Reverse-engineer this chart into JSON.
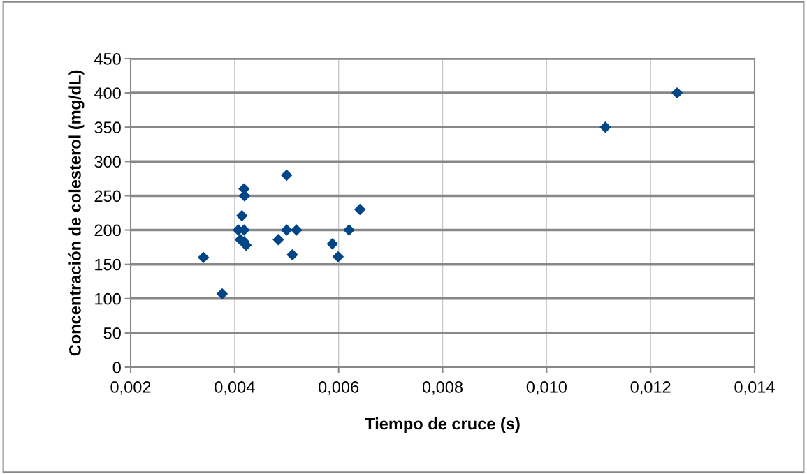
{
  "chart_data": {
    "type": "scatter",
    "xlabel": "Tiempo de cruce (s)",
    "ylabel": "Concentración de colesterol (mg/dL)",
    "x": [
      0.0034,
      0.00376,
      0.00418,
      0.00419,
      0.00414,
      0.00407,
      0.00418,
      0.00411,
      0.00418,
      0.00422,
      0.005,
      0.005,
      0.00519,
      0.00484,
      0.00511,
      0.00588,
      0.00599,
      0.0062,
      0.00641,
      0.01113,
      0.01251
    ],
    "values": [
      160,
      107,
      260,
      250,
      221,
      200,
      200,
      186,
      183,
      178,
      200,
      280,
      200,
      186,
      164,
      180,
      161,
      200,
      230,
      350,
      400
    ],
    "color": "#004586",
    "marker": "diamond",
    "grid": true,
    "legend": false,
    "xlim": [
      0.002,
      0.014
    ],
    "ylim": [
      0,
      450
    ],
    "xticks": [
      {
        "value": 0.002,
        "label": "0,002"
      },
      {
        "value": 0.004,
        "label": "0,004"
      },
      {
        "value": 0.006,
        "label": "0,006"
      },
      {
        "value": 0.008,
        "label": "0,008"
      },
      {
        "value": 0.01,
        "label": "0,010"
      },
      {
        "value": 0.012,
        "label": "0,012"
      },
      {
        "value": 0.014,
        "label": "0,014"
      }
    ],
    "yticks": [
      0,
      50,
      100,
      150,
      200,
      250,
      300,
      350,
      400,
      450
    ]
  }
}
